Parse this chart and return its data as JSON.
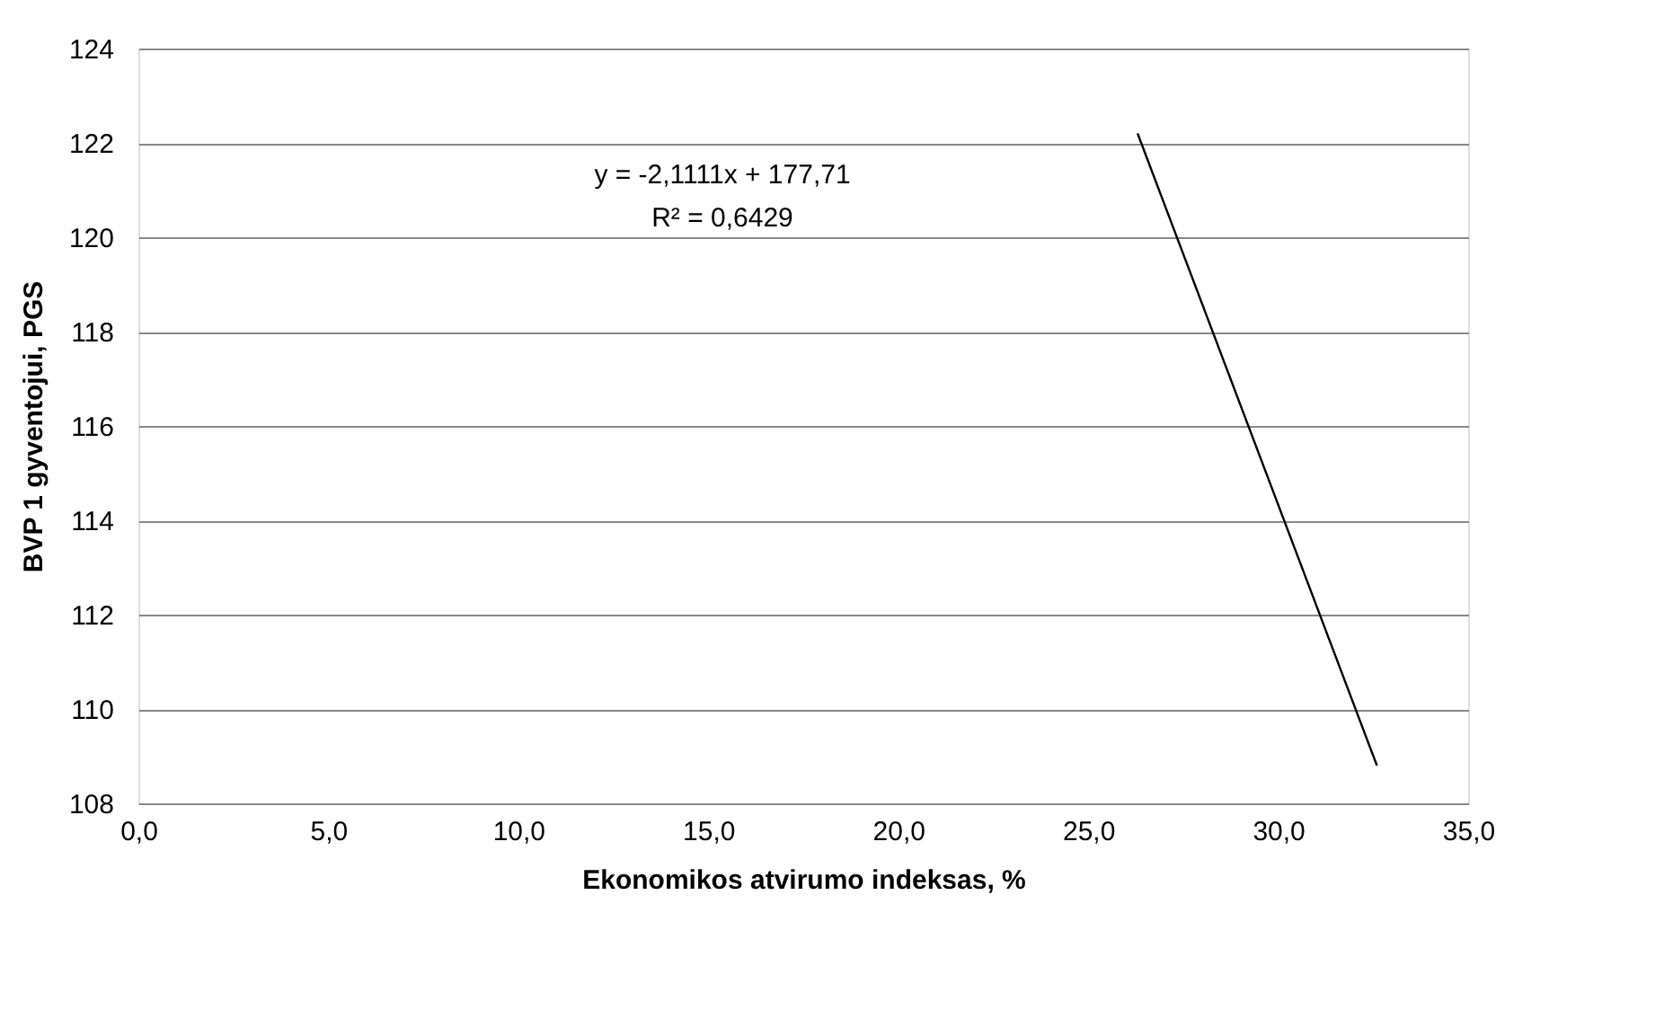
{
  "chart_data": {
    "type": "line",
    "xlabel": "Ekonomikos atvirumo indeksas, %",
    "ylabel": "BVP 1 gyventojui, PGS",
    "x": [
      26.3,
      32.6
    ],
    "series": [
      {
        "color": "#000000",
        "values": [
          122.2,
          108.8
        ]
      }
    ],
    "xlim": [
      0,
      35
    ],
    "xticks": [
      {
        "value": 0,
        "label": "0,0"
      },
      {
        "value": 5,
        "label": "5,0"
      },
      {
        "value": 10,
        "label": "10,0"
      },
      {
        "value": 15,
        "label": "15,0"
      },
      {
        "value": 20,
        "label": "20,0"
      },
      {
        "value": 25,
        "label": "25,0"
      },
      {
        "value": 30,
        "label": "30,0"
      },
      {
        "value": 35,
        "label": "35,0"
      }
    ],
    "ylim": [
      108,
      124
    ],
    "yticks": [
      108,
      110,
      112,
      114,
      116,
      118,
      120,
      122,
      124
    ],
    "grid": "y",
    "line_style": "solid",
    "annotations": [
      "y = -2,1111x + 177,71",
      "R² = 0,6429"
    ]
  }
}
